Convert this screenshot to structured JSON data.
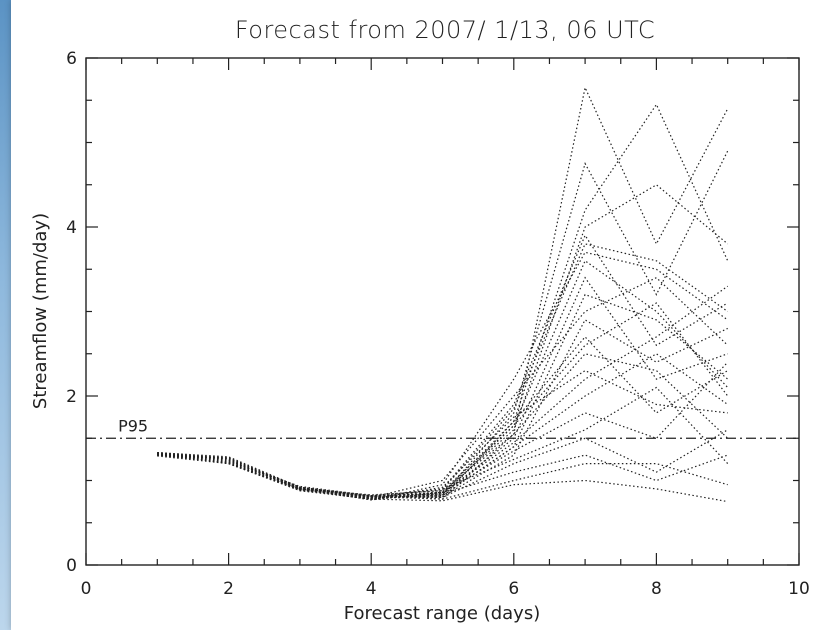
{
  "chart_data": {
    "type": "line",
    "title": "Forecast from 2007/ 1/13, 06 UTC",
    "xlabel": "Forecast range (days)",
    "ylabel": "Streamflow (mm/day)",
    "xlim": [
      0,
      10
    ],
    "ylim": [
      0,
      6
    ],
    "xticks": [
      0,
      2,
      4,
      6,
      8,
      10
    ],
    "yticks": [
      0,
      2,
      4,
      6
    ],
    "grid": false,
    "colors": {
      "line": "#222222",
      "background": "#ffffff"
    },
    "threshold": {
      "label": "P95",
      "y": 1.5,
      "style": "dash-dot"
    },
    "x": [
      1,
      2,
      3,
      4,
      5,
      6,
      7,
      8,
      9
    ],
    "series": [
      {
        "style": "dotted",
        "values": [
          1.33,
          1.28,
          0.92,
          0.82,
          0.78,
          1.55,
          5.65,
          3.8,
          5.4
        ]
      },
      {
        "style": "dotted",
        "values": [
          1.33,
          1.24,
          0.9,
          0.8,
          0.8,
          1.7,
          4.2,
          5.45,
          3.6
        ]
      },
      {
        "style": "dotted",
        "values": [
          1.32,
          1.25,
          0.89,
          0.79,
          0.83,
          1.8,
          4.75,
          3.2,
          4.9
        ]
      },
      {
        "style": "dotted",
        "values": [
          1.31,
          1.22,
          0.91,
          0.81,
          0.86,
          1.6,
          4.0,
          4.5,
          3.8
        ]
      },
      {
        "style": "dotted",
        "values": [
          1.32,
          1.2,
          0.88,
          0.78,
          0.9,
          1.9,
          3.9,
          2.6,
          3.1
        ]
      },
      {
        "style": "dotted",
        "values": [
          1.3,
          1.26,
          0.9,
          0.77,
          0.95,
          2.2,
          3.7,
          3.5,
          2.9
        ]
      },
      {
        "style": "dotted",
        "values": [
          1.31,
          1.23,
          0.93,
          0.82,
          0.84,
          1.5,
          3.4,
          2.2,
          2.5
        ]
      },
      {
        "style": "dotted",
        "values": [
          1.3,
          1.21,
          0.89,
          0.8,
          0.82,
          1.4,
          3.2,
          2.9,
          2.2
        ]
      },
      {
        "style": "dotted",
        "values": [
          1.33,
          1.27,
          0.92,
          0.79,
          0.81,
          1.3,
          2.9,
          2.4,
          2.8
        ]
      },
      {
        "style": "dotted",
        "values": [
          1.29,
          1.2,
          0.9,
          0.83,
          0.88,
          1.65,
          2.6,
          3.1,
          2.0
        ]
      },
      {
        "style": "dotted",
        "values": [
          1.32,
          1.25,
          0.91,
          0.78,
          0.92,
          1.75,
          2.3,
          1.9,
          1.8
        ]
      },
      {
        "style": "dotted",
        "values": [
          1.3,
          1.22,
          0.88,
          0.81,
          0.85,
          1.45,
          2.2,
          2.7,
          3.3
        ]
      },
      {
        "style": "dotted",
        "values": [
          1.31,
          1.24,
          0.9,
          0.8,
          1.0,
          2.0,
          3.0,
          3.4,
          2.6
        ]
      },
      {
        "style": "dotted",
        "values": [
          1.33,
          1.26,
          0.92,
          0.77,
          0.86,
          1.35,
          1.8,
          1.5,
          2.4
        ]
      },
      {
        "style": "dotted",
        "values": [
          1.3,
          1.21,
          0.89,
          0.82,
          0.8,
          1.2,
          1.5,
          1.1,
          1.6
        ]
      },
      {
        "style": "dotted",
        "values": [
          1.32,
          1.23,
          0.91,
          0.79,
          0.84,
          1.1,
          1.3,
          1.0,
          1.3
        ]
      },
      {
        "style": "dotted",
        "values": [
          1.31,
          1.27,
          0.9,
          0.81,
          0.78,
          1.0,
          1.2,
          1.2,
          0.95
        ]
      },
      {
        "style": "dotted",
        "values": [
          1.3,
          1.2,
          0.88,
          0.78,
          0.76,
          0.95,
          1.0,
          0.9,
          0.75
        ]
      },
      {
        "style": "dotted",
        "values": [
          1.33,
          1.25,
          0.92,
          0.8,
          0.9,
          1.25,
          1.6,
          2.1,
          1.2
        ]
      },
      {
        "style": "dotted",
        "values": [
          1.31,
          1.22,
          0.89,
          0.79,
          0.87,
          1.55,
          2.5,
          2.3,
          1.5
        ]
      },
      {
        "style": "dotted",
        "values": [
          1.32,
          1.24,
          0.9,
          0.8,
          0.83,
          1.65,
          3.6,
          3.0,
          2.1
        ]
      },
      {
        "style": "dotted",
        "values": [
          1.3,
          1.26,
          0.91,
          0.82,
          0.89,
          1.85,
          3.8,
          3.6,
          3.0
        ]
      },
      {
        "style": "dotted",
        "values": [
          1.32,
          1.21,
          0.89,
          0.78,
          0.85,
          1.7,
          2.7,
          1.8,
          2.3
        ]
      },
      {
        "style": "dotted",
        "values": [
          1.31,
          1.23,
          0.92,
          0.81,
          0.82,
          1.4,
          2.0,
          2.5,
          1.9
        ]
      }
    ]
  }
}
